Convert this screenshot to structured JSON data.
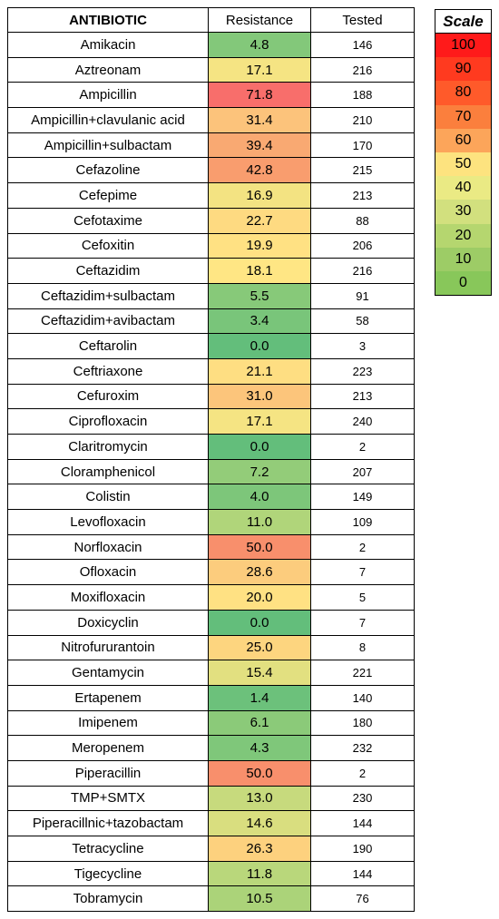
{
  "chart_data": {
    "type": "table",
    "headers": {
      "antibiotic": "ANTIBIOTIC",
      "resistance": "Resistance",
      "tested": "Tested"
    },
    "rows": [
      {
        "name": "Amikacin",
        "resistance": "4.8",
        "tested": "146"
      },
      {
        "name": "Aztreonam",
        "resistance": "17.1",
        "tested": "216"
      },
      {
        "name": "Ampicillin",
        "resistance": "71.8",
        "tested": "188"
      },
      {
        "name": "Ampicillin+clavulanic acid",
        "resistance": "31.4",
        "tested": "210"
      },
      {
        "name": "Ampicillin+sulbactam",
        "resistance": "39.4",
        "tested": "170"
      },
      {
        "name": "Cefazoline",
        "resistance": "42.8",
        "tested": "215"
      },
      {
        "name": "Cefepime",
        "resistance": "16.9",
        "tested": "213"
      },
      {
        "name": "Cefotaxime",
        "resistance": "22.7",
        "tested": "88"
      },
      {
        "name": "Cefoxitin",
        "resistance": "19.9",
        "tested": "206"
      },
      {
        "name": "Ceftazidim",
        "resistance": "18.1",
        "tested": "216"
      },
      {
        "name": "Ceftazidim+sulbactam",
        "resistance": "5.5",
        "tested": "91"
      },
      {
        "name": "Ceftazidim+avibactam",
        "resistance": "3.4",
        "tested": "58"
      },
      {
        "name": "Ceftarolin",
        "resistance": "0.0",
        "tested": "3"
      },
      {
        "name": "Ceftriaxone",
        "resistance": "21.1",
        "tested": "223"
      },
      {
        "name": "Cefuroxim",
        "resistance": "31.0",
        "tested": "213"
      },
      {
        "name": "Ciprofloxacin",
        "resistance": "17.1",
        "tested": "240"
      },
      {
        "name": "Claritromycin",
        "resistance": "0.0",
        "tested": "2"
      },
      {
        "name": "Cloramphenicol",
        "resistance": "7.2",
        "tested": "207"
      },
      {
        "name": "Colistin",
        "resistance": "4.0",
        "tested": "149"
      },
      {
        "name": "Levofloxacin",
        "resistance": "11.0",
        "tested": "109"
      },
      {
        "name": "Norfloxacin",
        "resistance": "50.0",
        "tested": "2"
      },
      {
        "name": "Ofloxacin",
        "resistance": "28.6",
        "tested": "7"
      },
      {
        "name": "Moxifloxacin",
        "resistance": "20.0",
        "tested": "5"
      },
      {
        "name": "Doxicyclin",
        "resistance": "0.0",
        "tested": "7"
      },
      {
        "name": "Nitrofururantoin",
        "resistance": "25.0",
        "tested": "8"
      },
      {
        "name": "Gentamycin",
        "resistance": "15.4",
        "tested": "221"
      },
      {
        "name": "Ertapenem",
        "resistance": "1.4",
        "tested": "140"
      },
      {
        "name": "Imipenem",
        "resistance": "6.1",
        "tested": "180"
      },
      {
        "name": "Meropenem",
        "resistance": "4.3",
        "tested": "232"
      },
      {
        "name": "Piperacillin",
        "resistance": "50.0",
        "tested": "2"
      },
      {
        "name": "TMP+SMTX",
        "resistance": "13.0",
        "tested": "230"
      },
      {
        "name": "Piperacillnic+tazobactam",
        "resistance": "14.6",
        "tested": "144"
      },
      {
        "name": "Tetracycline",
        "resistance": "26.3",
        "tested": "190"
      },
      {
        "name": "Tigecycline",
        "resistance": "11.8",
        "tested": "144"
      },
      {
        "name": "Tobramycin",
        "resistance": "10.5",
        "tested": "76"
      }
    ],
    "scale": {
      "title": "Scale",
      "steps": [
        {
          "label": "100",
          "color": "#ff1a1a"
        },
        {
          "label": "90",
          "color": "#ff3a1f"
        },
        {
          "label": "80",
          "color": "#ff5a2a"
        },
        {
          "label": "70",
          "color": "#fb7f3d"
        },
        {
          "label": "60",
          "color": "#fca55a"
        },
        {
          "label": "50",
          "color": "#fde37f"
        },
        {
          "label": "40",
          "color": "#eaea84"
        },
        {
          "label": "30",
          "color": "#d2e07e"
        },
        {
          "label": "20",
          "color": "#b5d66f"
        },
        {
          "label": "10",
          "color": "#9dcc66"
        },
        {
          "label": "0",
          "color": "#88c75a"
        }
      ]
    }
  }
}
